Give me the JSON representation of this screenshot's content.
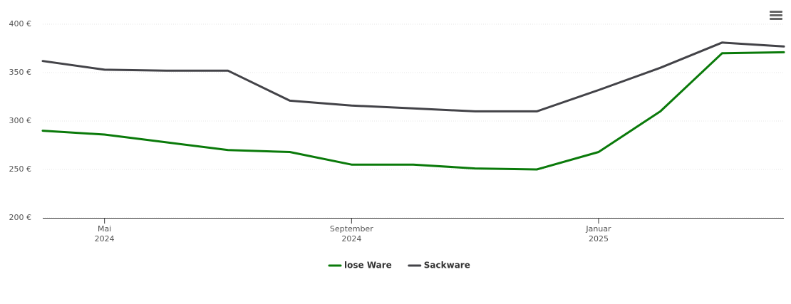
{
  "chart_data": {
    "type": "line",
    "x": [
      "2024-04",
      "2024-05",
      "2024-06",
      "2024-07",
      "2024-08",
      "2024-09",
      "2024-10",
      "2024-11",
      "2024-12",
      "2025-01",
      "2025-02",
      "2025-03",
      "2025-04"
    ],
    "series": [
      {
        "name": "lose Ware",
        "color": "#0a7a0a",
        "values": [
          290,
          286,
          278,
          270,
          268,
          255,
          255,
          251,
          250,
          268,
          310,
          370,
          371
        ]
      },
      {
        "name": "Sackware",
        "color": "#434348",
        "values": [
          362,
          353,
          352,
          352,
          321,
          316,
          313,
          310,
          310,
          332,
          355,
          381,
          377
        ]
      }
    ],
    "xlim": [
      "2024-04",
      "2025-04"
    ],
    "xticks": [
      {
        "value": "2024-05",
        "label": [
          "Mai",
          "2024"
        ]
      },
      {
        "value": "2024-09",
        "label": [
          "September",
          "2024"
        ]
      },
      {
        "value": "2025-01",
        "label": [
          "Januar",
          "2025"
        ]
      }
    ],
    "ylim": [
      200,
      400
    ],
    "yticks": [
      {
        "value": 200,
        "label": "200 €"
      },
      {
        "value": 250,
        "label": "250 €"
      },
      {
        "value": 300,
        "label": "300 €"
      },
      {
        "value": 350,
        "label": "350 €"
      },
      {
        "value": 400,
        "label": "400 €"
      }
    ],
    "grid": true,
    "legend": "bottom"
  }
}
